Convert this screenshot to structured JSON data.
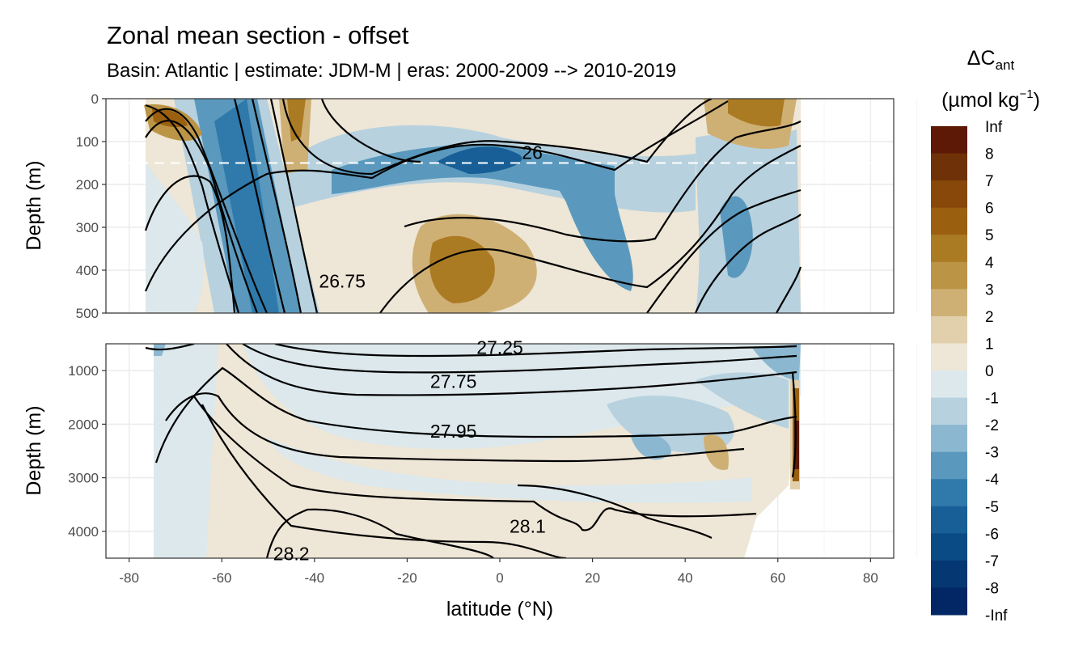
{
  "chart_data": {
    "type": "heatmap",
    "title": "Zonal mean section - offset",
    "subtitle": "Basin: Atlantic | estimate: JDM-M | eras: 2000-2009 --> 2010-2019",
    "xlabel": "latitude (°N)",
    "ylabel": "Depth (m)",
    "xlim": [
      -85,
      85
    ],
    "x_ticks": [
      "-80",
      "-60",
      "-40",
      "-20",
      "0",
      "20",
      "40",
      "60",
      "80"
    ],
    "grid": true,
    "panels": [
      {
        "name": "upper",
        "ylim": [
          0,
          500
        ],
        "y_ticks": [
          "0",
          "100",
          "200",
          "300",
          "400",
          "500"
        ],
        "reference_line_depth": 150,
        "isopycnal_labels": [
          {
            "text": "26",
            "lat": 7,
            "depth": 125
          },
          {
            "text": "26.75",
            "lat": -34,
            "depth": 425
          }
        ]
      },
      {
        "name": "lower",
        "ylim": [
          500,
          4500
        ],
        "y_ticks": [
          "1000",
          "2000",
          "3000",
          "4000"
        ],
        "isopycnal_labels": [
          {
            "text": "27.25",
            "lat": 0,
            "depth": 570
          },
          {
            "text": "27.75",
            "lat": -10,
            "depth": 1200
          },
          {
            "text": "27.95",
            "lat": -10,
            "depth": 2130
          },
          {
            "text": "28.1",
            "lat": 6,
            "depth": 3900
          },
          {
            "text": "28.2",
            "lat": -45,
            "depth": 4420
          }
        ]
      }
    ],
    "legend": {
      "title": "ΔC",
      "title_subscript": "ant",
      "unit_prefix": "(µmol kg",
      "unit_superscript": "−1",
      "unit_suffix": ")",
      "placement": "right",
      "labels": [
        "Inf",
        "8",
        "7",
        "6",
        "5",
        "4",
        "3",
        "2",
        "1",
        "0",
        "-1",
        "-2",
        "-3",
        "-4",
        "-5",
        "-6",
        "-7",
        "-8",
        "-Inf"
      ],
      "colors": [
        "#5e1906",
        "#6f3208",
        "#87480a",
        "#9a6010",
        "#ab7b24",
        "#bb9446",
        "#cfb074",
        "#e1d0ab",
        "#eee6d6",
        "#dce8ec",
        "#b7d1df",
        "#8bb8d0",
        "#5a99bd",
        "#2f7aab",
        "#185f97",
        "#0b4b85",
        "#053772",
        "#022764",
        "#001859"
      ]
    }
  }
}
